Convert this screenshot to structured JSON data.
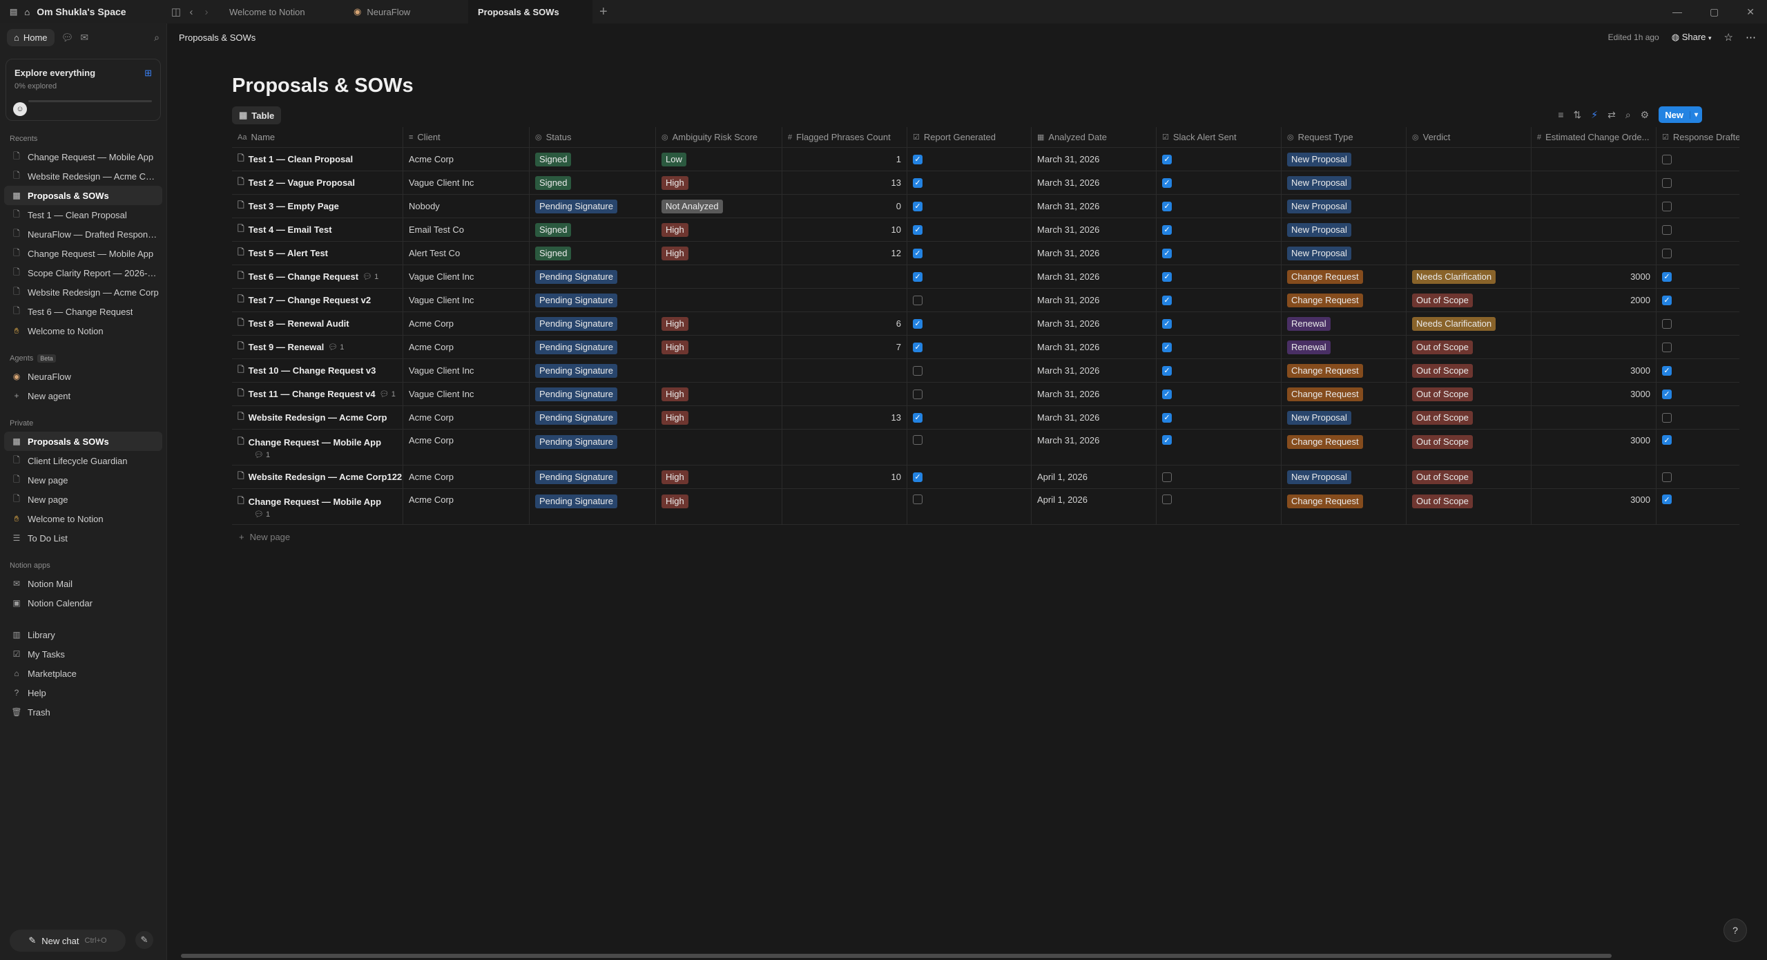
{
  "workspace": {
    "name": "Om Shukla's Space"
  },
  "tabs": [
    "Welcome to Notion",
    "NeuraFlow",
    "Proposals & SOWs"
  ],
  "sidebar": {
    "home_label": "Home",
    "explore": {
      "title": "Explore everything",
      "subtitle": "0% explored",
      "progress": 0
    },
    "recents_label": "Recents",
    "recents": [
      {
        "label": "Change Request — Mobile App",
        "icon": "page-icon"
      },
      {
        "label": "Website Redesign — Acme Cor...",
        "icon": "page-icon"
      },
      {
        "label": "Proposals & SOWs",
        "icon": "table-icon",
        "selected": true
      },
      {
        "label": "Test 1 — Clean Proposal",
        "icon": "page-icon"
      },
      {
        "label": "NeuraFlow — Drafted Respons...",
        "icon": "page-icon"
      },
      {
        "label": "Change Request — Mobile App",
        "icon": "page-icon"
      },
      {
        "label": "Scope Clarity Report — 2026-0...",
        "icon": "page-icon"
      },
      {
        "label": "Website Redesign — Acme Corp",
        "icon": "page-icon"
      },
      {
        "label": "Test 6 — Change Request",
        "icon": "page-icon"
      },
      {
        "label": "Welcome to Notion",
        "icon": "wave-icon"
      }
    ],
    "agents_label": "Agents",
    "beta_label": "Beta",
    "agents": [
      {
        "label": "NeuraFlow",
        "icon": "agent-icon"
      },
      {
        "label": "New agent",
        "icon": "plus-icon"
      }
    ],
    "private_label": "Private",
    "private": [
      {
        "label": "Proposals & SOWs",
        "icon": "table-icon",
        "selected": true
      },
      {
        "label": "Client Lifecycle Guardian",
        "icon": "page-icon"
      },
      {
        "label": "New page",
        "icon": "page-icon"
      },
      {
        "label": "New page",
        "icon": "page-icon"
      },
      {
        "label": "Welcome to Notion",
        "icon": "wave-icon"
      },
      {
        "label": "To Do List",
        "icon": "list-icon"
      }
    ],
    "apps_label": "Notion apps",
    "apps": [
      {
        "label": "Notion Mail",
        "icon": "mail-icon"
      },
      {
        "label": "Notion Calendar",
        "icon": "calendar-icon"
      }
    ],
    "bottom": [
      {
        "label": "Library",
        "icon": "library-icon"
      },
      {
        "label": "My Tasks",
        "icon": "tasks-icon"
      },
      {
        "label": "Marketplace",
        "icon": "marketplace-icon"
      },
      {
        "label": "Help",
        "icon": "help-icon"
      },
      {
        "label": "Trash",
        "icon": "trash-icon"
      }
    ],
    "new_chat": "New chat",
    "new_chat_shortcut": "Ctrl+O"
  },
  "topbar": {
    "breadcrumb": "Proposals & SOWs",
    "edited": "Edited 1h ago",
    "share": "Share"
  },
  "page": {
    "title": "Proposals & SOWs",
    "view_label": "Table",
    "new_label": "New",
    "new_page_label": "New page"
  },
  "colors": {
    "Signed": "#2b593f",
    "Pending Signature": "#28456c",
    "Low": "#2b593f",
    "High": "#6e3630",
    "Not Analyzed": "#5a5a5a",
    "New Proposal": "#28456c",
    "Change Request": "#854c1d",
    "Renewal": "#492f64",
    "Needs Clarification": "#89632a",
    "Out of Scope": "#6e3630"
  },
  "columns": [
    {
      "label": "Name",
      "icon": "Aa"
    },
    {
      "label": "Client",
      "icon": "≡"
    },
    {
      "label": "Status",
      "icon": "◎"
    },
    {
      "label": "Ambiguity Risk Score",
      "icon": "◎"
    },
    {
      "label": "Flagged Phrases Count",
      "icon": "#"
    },
    {
      "label": "Report Generated",
      "icon": "☑"
    },
    {
      "label": "Analyzed Date",
      "icon": "▦"
    },
    {
      "label": "Slack Alert Sent",
      "icon": "☑"
    },
    {
      "label": "Request Type",
      "icon": "◎"
    },
    {
      "label": "Verdict",
      "icon": "◎"
    },
    {
      "label": "Estimated Change Orde...",
      "icon": "#"
    },
    {
      "label": "Response Drafted",
      "icon": "☑"
    }
  ],
  "rows": [
    {
      "name": "Test 1 — Clean Proposal",
      "comments": "",
      "client": "Acme Corp",
      "status": "Signed",
      "risk": "Low",
      "flagged": "1",
      "report": true,
      "date": "March 31, 2026",
      "slack": true,
      "rtype": "New Proposal",
      "verdict": "",
      "est": "",
      "drafted": false
    },
    {
      "name": "Test 2 — Vague Proposal",
      "comments": "",
      "client": "Vague Client Inc",
      "status": "Signed",
      "risk": "High",
      "flagged": "13",
      "report": true,
      "date": "March 31, 2026",
      "slack": true,
      "rtype": "New Proposal",
      "verdict": "",
      "est": "",
      "drafted": false
    },
    {
      "name": "Test 3 — Empty Page",
      "comments": "",
      "client": "Nobody",
      "status": "Pending Signature",
      "risk": "Not Analyzed",
      "flagged": "0",
      "report": true,
      "date": "March 31, 2026",
      "slack": true,
      "rtype": "New Proposal",
      "verdict": "",
      "est": "",
      "drafted": false
    },
    {
      "name": "Test 4 — Email Test",
      "comments": "",
      "client": "Email Test Co",
      "status": "Signed",
      "risk": "High",
      "flagged": "10",
      "report": true,
      "date": "March 31, 2026",
      "slack": true,
      "rtype": "New Proposal",
      "verdict": "",
      "est": "",
      "drafted": false
    },
    {
      "name": "Test 5 — Alert Test",
      "comments": "",
      "client": "Alert Test Co",
      "status": "Signed",
      "risk": "High",
      "flagged": "12",
      "report": true,
      "date": "March 31, 2026",
      "slack": true,
      "rtype": "New Proposal",
      "verdict": "",
      "est": "",
      "drafted": false
    },
    {
      "name": "Test 6 — Change Request",
      "comments": "1",
      "client": "Vague Client Inc",
      "status": "Pending Signature",
      "risk": "",
      "flagged": "",
      "report": true,
      "date": "March 31, 2026",
      "slack": true,
      "rtype": "Change Request",
      "verdict": "Needs Clarification",
      "est": "3000",
      "drafted": true
    },
    {
      "name": "Test 7 — Change Request v2",
      "comments": "",
      "client": "Vague Client Inc",
      "status": "Pending Signature",
      "risk": "",
      "flagged": "",
      "report": false,
      "date": "March 31, 2026",
      "slack": true,
      "rtype": "Change Request",
      "verdict": "Out of Scope",
      "est": "2000",
      "drafted": true
    },
    {
      "name": "Test 8 — Renewal Audit",
      "comments": "",
      "client": "Acme Corp",
      "status": "Pending Signature",
      "risk": "High",
      "flagged": "6",
      "report": true,
      "date": "March 31, 2026",
      "slack": true,
      "rtype": "Renewal",
      "verdict": "Needs Clarification",
      "est": "",
      "drafted": false
    },
    {
      "name": "Test 9 — Renewal",
      "comments": "1",
      "client": "Acme Corp",
      "status": "Pending Signature",
      "risk": "High",
      "flagged": "7",
      "report": true,
      "date": "March 31, 2026",
      "slack": true,
      "rtype": "Renewal",
      "verdict": "Out of Scope",
      "est": "",
      "drafted": false
    },
    {
      "name": "Test 10 — Change Request v3",
      "comments": "",
      "client": "Vague Client Inc",
      "status": "Pending Signature",
      "risk": "",
      "flagged": "",
      "report": false,
      "date": "March 31, 2026",
      "slack": true,
      "rtype": "Change Request",
      "verdict": "Out of Scope",
      "est": "3000",
      "drafted": true
    },
    {
      "name": "Test 11 — Change Request v4",
      "comments": "1",
      "client": "Vague Client Inc",
      "status": "Pending Signature",
      "risk": "High",
      "flagged": "",
      "report": false,
      "date": "March 31, 2026",
      "slack": true,
      "rtype": "Change Request",
      "verdict": "Out of Scope",
      "est": "3000",
      "drafted": true
    },
    {
      "name": "Website Redesign — Acme Corp",
      "comments": "",
      "client": "Acme Corp",
      "status": "Pending Signature",
      "risk": "High",
      "flagged": "13",
      "report": true,
      "date": "March 31, 2026",
      "slack": true,
      "rtype": "New Proposal",
      "verdict": "Out of Scope",
      "est": "",
      "drafted": false
    },
    {
      "name": "Change Request — Mobile App",
      "comments": "1",
      "comment_below": true,
      "client": "Acme Corp",
      "status": "Pending Signature",
      "risk": "",
      "flagged": "",
      "report": false,
      "date": "March 31, 2026",
      "slack": true,
      "rtype": "Change Request",
      "verdict": "Out of Scope",
      "est": "3000",
      "drafted": true
    },
    {
      "name": "Website Redesign — Acme Corp122",
      "comments": "",
      "client": "Acme Corp",
      "status": "Pending Signature",
      "risk": "High",
      "flagged": "10",
      "report": true,
      "date": "April 1, 2026",
      "slack": false,
      "rtype": "New Proposal",
      "verdict": "Out of Scope",
      "est": "",
      "drafted": false
    },
    {
      "name": "Change Request — Mobile App",
      "comments": "1",
      "comment_below": true,
      "client": "Acme Corp",
      "status": "Pending Signature",
      "risk": "High",
      "flagged": "",
      "report": false,
      "date": "April 1, 2026",
      "slack": false,
      "rtype": "Change Request",
      "verdict": "Out of Scope",
      "est": "3000",
      "drafted": true
    }
  ]
}
